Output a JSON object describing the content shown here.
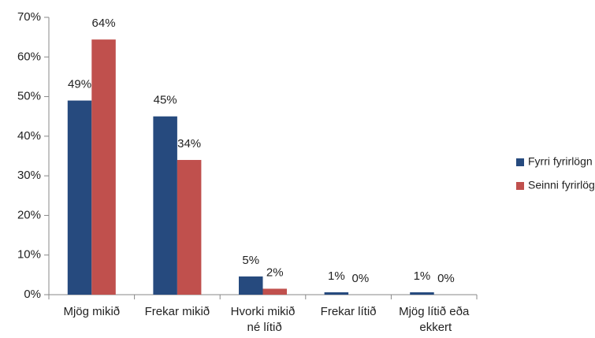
{
  "chart_data": {
    "type": "bar",
    "categories": [
      "Mjög mikið",
      "Frekar mikið",
      "Hvorki mikið né lítið",
      "Frekar lítið",
      "Mjög lítið eða ekkert"
    ],
    "series": [
      {
        "name": "Fyrri fyrirlögn",
        "color": "#264a7e",
        "values": [
          49,
          45,
          4.6,
          0.6,
          0.6
        ],
        "value_labels": [
          "49%",
          "45%",
          "5%",
          "1%",
          "1%"
        ]
      },
      {
        "name": "Seinni fyrirlögn",
        "color": "#c0504d",
        "values": [
          64.4,
          34,
          1.5,
          0,
          0
        ],
        "value_labels": [
          "64%",
          "34%",
          "2%",
          "0%",
          "0%"
        ]
      }
    ],
    "ylim": [
      0,
      70
    ],
    "yticks": [
      {
        "value": 0,
        "label": "0%"
      },
      {
        "value": 10,
        "label": "10%"
      },
      {
        "value": 20,
        "label": "20%"
      },
      {
        "value": 30,
        "label": "30%"
      },
      {
        "value": 40,
        "label": "40%"
      },
      {
        "value": 50,
        "label": "50%"
      },
      {
        "value": 60,
        "label": "60%"
      },
      {
        "value": 70,
        "label": "70%"
      }
    ],
    "grid": false,
    "legend": "right"
  }
}
